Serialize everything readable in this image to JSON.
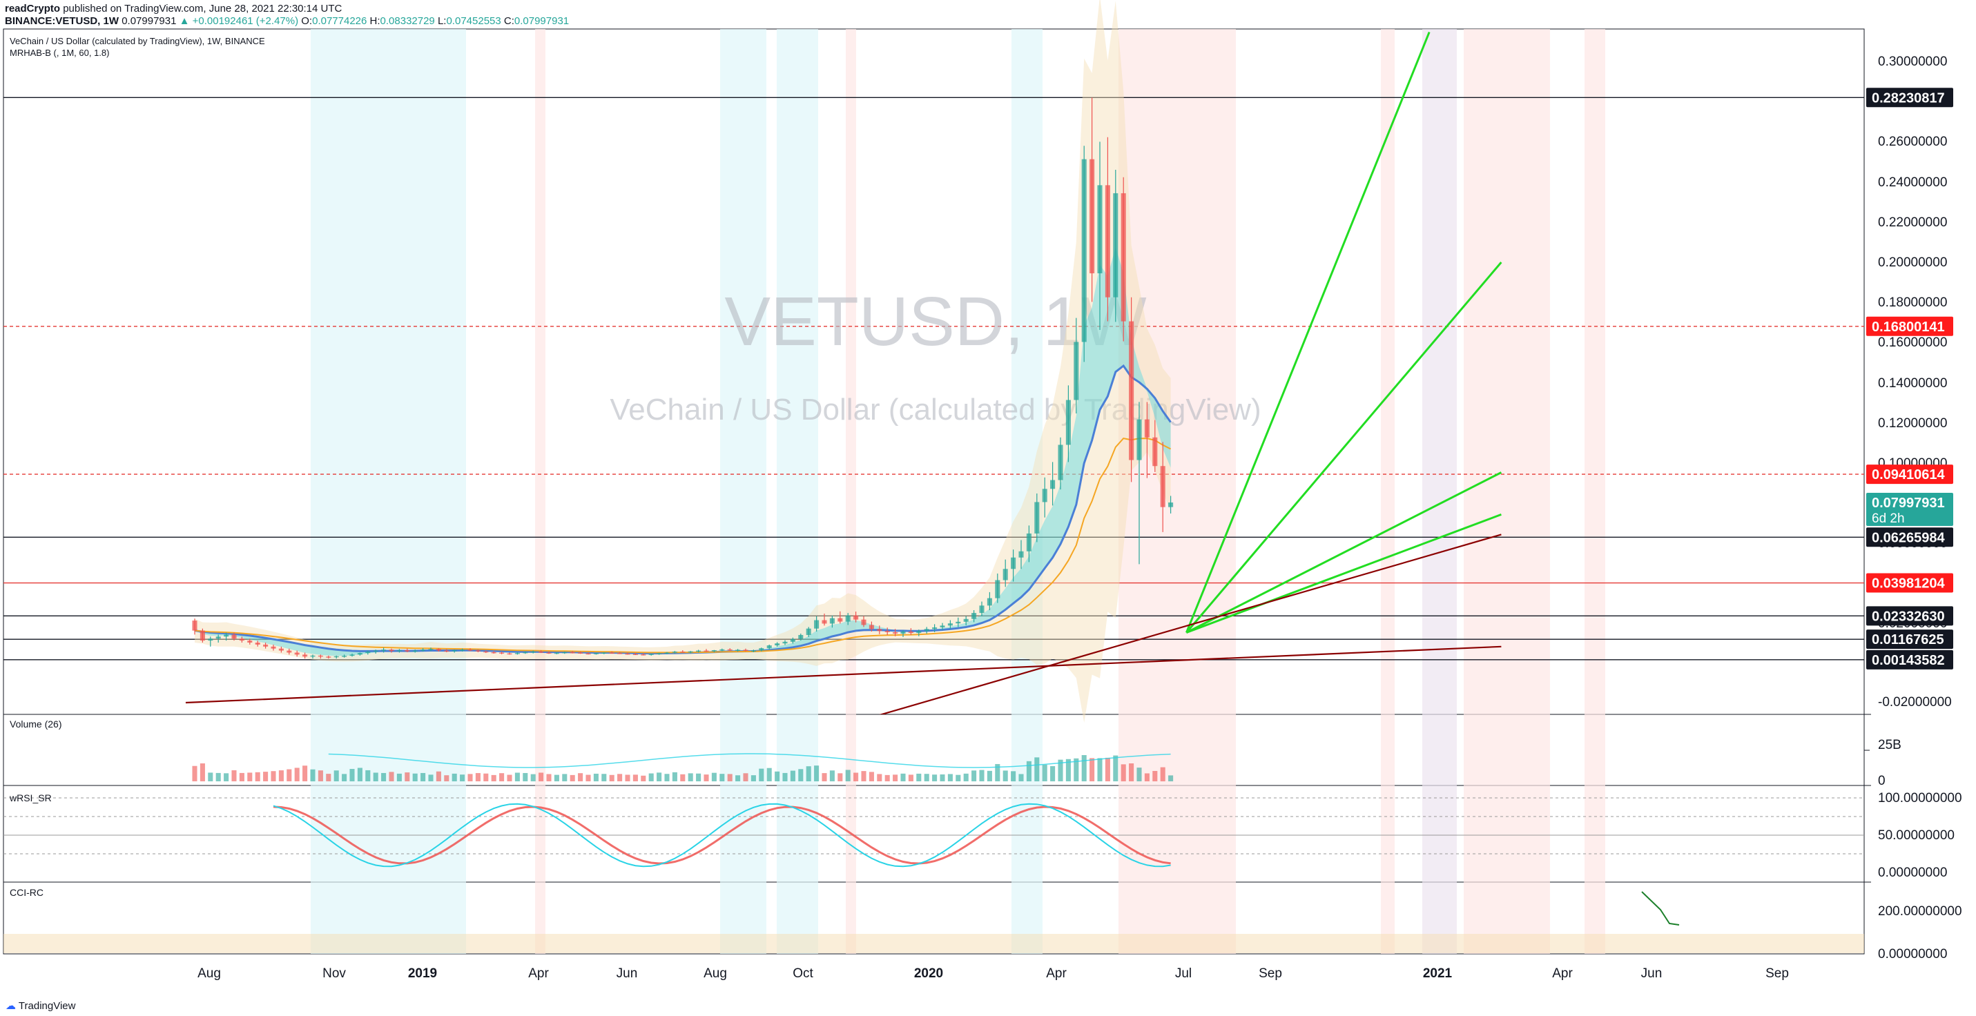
{
  "header": {
    "author": "readCrypto",
    "published": "published on TradingView.com, June 28, 2021 22:30:14 UTC",
    "symbol": "BINANCE:VETUSD, 1W",
    "last": "0.07997931",
    "change": "▲ +0.00192461 (+2.47%)",
    "o_label": "O:",
    "o": "0.07774226",
    "h_label": "H:",
    "h": "0.08332729",
    "l_label": "L:",
    "l": "0.07452553",
    "c_label": "C:",
    "c": "0.07997931"
  },
  "legend": {
    "line1": "VeChain / US Dollar (calculated by TradingView), 1W, BINANCE",
    "line2": "MRHAB-B (, 1M, 60, 1.8)"
  },
  "watermark": {
    "big": "VETUSD, 1W",
    "sub": "VeChain / US Dollar (calculated by TradingView)"
  },
  "footer": {
    "brand": "TradingView"
  },
  "colors": {
    "up": "#26a69a",
    "down": "#ef5350",
    "green_line": "#22dd22",
    "dark_red": "#8b0000",
    "blue": "#4a7fd6",
    "orange": "#f5a623",
    "cyan": "#29d3e6"
  },
  "chart_data": [
    {
      "type": "candlestick",
      "title": "VETUSD, 1W",
      "x_ticks": [
        "Aug",
        "Nov",
        "2019",
        "Apr",
        "Jun",
        "Aug",
        "Oct",
        "2020",
        "Apr",
        "Jul",
        "Sep",
        "2021",
        "Apr",
        "Jun",
        "Sep"
      ],
      "y_ticks": [
        "0.30000000",
        "0.28000000",
        "0.26000000",
        "0.24000000",
        "0.22000000",
        "0.20000000",
        "0.18000000",
        "0.16000000",
        "0.14000000",
        "0.12000000",
        "0.10000000",
        "0.08000000",
        "0.06000000",
        "0.04000000",
        "0.02000000",
        "0.00000000",
        "-0.02000000"
      ],
      "ylim": [
        -0.03,
        0.315
      ],
      "price_labels": [
        {
          "value": "0.28230817",
          "style": "black"
        },
        {
          "value": "0.16800141",
          "style": "red"
        },
        {
          "value": "0.09410614",
          "style": "red"
        },
        {
          "value": "0.07997931",
          "style": "teal",
          "sub": "6d 2h"
        },
        {
          "value": "0.06265984",
          "style": "black"
        },
        {
          "value": "0.03981204",
          "style": "red"
        },
        {
          "value": "0.02332630",
          "style": "black"
        },
        {
          "value": "0.01167625",
          "style": "black"
        },
        {
          "value": "0.00143582",
          "style": "black"
        }
      ],
      "series": [
        {
          "name": "VETUSD",
          "ohlc": [
            [
              0.021,
              0.022,
              0.014,
              0.016
            ],
            [
              0.016,
              0.017,
              0.01,
              0.011
            ],
            [
              0.011,
              0.013,
              0.008,
              0.012
            ],
            [
              0.012,
              0.014,
              0.01,
              0.013
            ],
            [
              0.013,
              0.015,
              0.011,
              0.014
            ],
            [
              0.014,
              0.015,
              0.011,
              0.012
            ],
            [
              0.012,
              0.013,
              0.01,
              0.011
            ],
            [
              0.011,
              0.012,
              0.009,
              0.01
            ],
            [
              0.01,
              0.011,
              0.008,
              0.009
            ],
            [
              0.009,
              0.01,
              0.007,
              0.008
            ],
            [
              0.008,
              0.009,
              0.006,
              0.007
            ],
            [
              0.007,
              0.008,
              0.005,
              0.006
            ],
            [
              0.006,
              0.007,
              0.004,
              0.005
            ],
            [
              0.005,
              0.006,
              0.003,
              0.004
            ],
            [
              0.004,
              0.005,
              0.002,
              0.003
            ],
            [
              0.003,
              0.004,
              0.002,
              0.0035
            ],
            [
              0.0035,
              0.004,
              0.002,
              0.003
            ],
            [
              0.003,
              0.0035,
              0.002,
              0.0028
            ],
            [
              0.0028,
              0.0035,
              0.002,
              0.0032
            ],
            [
              0.0032,
              0.004,
              0.0025,
              0.0034
            ],
            [
              0.0034,
              0.0045,
              0.003,
              0.004
            ],
            [
              0.004,
              0.005,
              0.0035,
              0.0048
            ],
            [
              0.0048,
              0.006,
              0.004,
              0.0055
            ],
            [
              0.0055,
              0.0065,
              0.0045,
              0.006
            ],
            [
              0.006,
              0.0075,
              0.005,
              0.0065
            ],
            [
              0.0065,
              0.007,
              0.005,
              0.0058
            ],
            [
              0.0058,
              0.0068,
              0.005,
              0.0062
            ],
            [
              0.0062,
              0.007,
              0.0052,
              0.0056
            ],
            [
              0.0056,
              0.0066,
              0.005,
              0.006
            ],
            [
              0.006,
              0.0072,
              0.0055,
              0.0065
            ],
            [
              0.0065,
              0.0075,
              0.0058,
              0.0068
            ],
            [
              0.0068,
              0.0072,
              0.0055,
              0.006
            ],
            [
              0.006,
              0.0068,
              0.0052,
              0.0058
            ],
            [
              0.0058,
              0.0066,
              0.005,
              0.0062
            ],
            [
              0.0062,
              0.007,
              0.0055,
              0.0065
            ],
            [
              0.0065,
              0.0072,
              0.0058,
              0.0061
            ],
            [
              0.0061,
              0.0066,
              0.0052,
              0.0056
            ],
            [
              0.0056,
              0.006,
              0.0048,
              0.0052
            ],
            [
              0.0052,
              0.0058,
              0.0045,
              0.005
            ],
            [
              0.005,
              0.0055,
              0.0042,
              0.0046
            ],
            [
              0.0046,
              0.005,
              0.004,
              0.0044
            ],
            [
              0.0044,
              0.0052,
              0.004,
              0.0048
            ],
            [
              0.0048,
              0.0056,
              0.0044,
              0.0052
            ],
            [
              0.0052,
              0.006,
              0.0046,
              0.0055
            ],
            [
              0.0055,
              0.0062,
              0.0048,
              0.005
            ],
            [
              0.005,
              0.0056,
              0.0044,
              0.0047
            ],
            [
              0.0047,
              0.0052,
              0.0042,
              0.0049
            ],
            [
              0.0049,
              0.0055,
              0.0044,
              0.0052
            ],
            [
              0.0052,
              0.0058,
              0.0046,
              0.005
            ],
            [
              0.005,
              0.0055,
              0.0044,
              0.0046
            ],
            [
              0.0046,
              0.005,
              0.0041,
              0.0044
            ],
            [
              0.0044,
              0.0049,
              0.004,
              0.0047
            ],
            [
              0.0047,
              0.0052,
              0.0042,
              0.005
            ],
            [
              0.005,
              0.0056,
              0.0045,
              0.0048
            ],
            [
              0.0048,
              0.0053,
              0.0043,
              0.0045
            ],
            [
              0.0045,
              0.005,
              0.004,
              0.0043
            ],
            [
              0.0043,
              0.0048,
              0.0038,
              0.0041
            ],
            [
              0.0041,
              0.0046,
              0.0036,
              0.004
            ],
            [
              0.004,
              0.0045,
              0.0035,
              0.0043
            ],
            [
              0.0043,
              0.0049,
              0.0039,
              0.0047
            ],
            [
              0.0047,
              0.0053,
              0.0042,
              0.005
            ],
            [
              0.005,
              0.0058,
              0.0046,
              0.0055
            ],
            [
              0.0055,
              0.0062,
              0.005,
              0.0052
            ],
            [
              0.0052,
              0.0058,
              0.0047,
              0.0056
            ],
            [
              0.0056,
              0.0064,
              0.0051,
              0.006
            ],
            [
              0.006,
              0.0068,
              0.0054,
              0.0057
            ],
            [
              0.0057,
              0.0063,
              0.0052,
              0.0062
            ],
            [
              0.0062,
              0.007,
              0.0056,
              0.0066
            ],
            [
              0.0066,
              0.0072,
              0.0058,
              0.0062
            ],
            [
              0.0062,
              0.0068,
              0.0055,
              0.0064
            ],
            [
              0.0064,
              0.007,
              0.0056,
              0.0059
            ],
            [
              0.0059,
              0.0065,
              0.0052,
              0.0061
            ],
            [
              0.0061,
              0.0075,
              0.0056,
              0.0072
            ],
            [
              0.0072,
              0.009,
              0.0066,
              0.0086
            ],
            [
              0.0086,
              0.0102,
              0.008,
              0.0096
            ],
            [
              0.0096,
              0.0112,
              0.0088,
              0.0104
            ],
            [
              0.0104,
              0.0125,
              0.0095,
              0.0118
            ],
            [
              0.0118,
              0.0145,
              0.011,
              0.0138
            ],
            [
              0.0138,
              0.0178,
              0.0128,
              0.017
            ],
            [
              0.017,
              0.0232,
              0.0155,
              0.0212
            ],
            [
              0.0212,
              0.0245,
              0.0185,
              0.0195
            ],
            [
              0.0195,
              0.0235,
              0.0175,
              0.0222
            ],
            [
              0.0222,
              0.0256,
              0.0195,
              0.0205
            ],
            [
              0.0205,
              0.0248,
              0.0188,
              0.0236
            ],
            [
              0.0236,
              0.0255,
              0.0201,
              0.0215
            ],
            [
              0.0215,
              0.0232,
              0.0178,
              0.0188
            ],
            [
              0.0188,
              0.0205,
              0.0155,
              0.0168
            ],
            [
              0.0168,
              0.0185,
              0.0142,
              0.0158
            ],
            [
              0.0158,
              0.0175,
              0.0138,
              0.0152
            ],
            [
              0.0152,
              0.0168,
              0.0132,
              0.0145
            ],
            [
              0.0145,
              0.0162,
              0.0128,
              0.0155
            ],
            [
              0.0155,
              0.0172,
              0.0138,
              0.0148
            ],
            [
              0.0148,
              0.0165,
              0.0132,
              0.0158
            ],
            [
              0.0158,
              0.0178,
              0.0145,
              0.0168
            ],
            [
              0.0168,
              0.0192,
              0.0152,
              0.0176
            ],
            [
              0.0176,
              0.0198,
              0.0162,
              0.0185
            ],
            [
              0.0185,
              0.0212,
              0.0168,
              0.0196
            ],
            [
              0.0196,
              0.0225,
              0.0178,
              0.0204
            ],
            [
              0.0204,
              0.0232,
              0.0186,
              0.0218
            ],
            [
              0.0218,
              0.0262,
              0.0202,
              0.0248
            ],
            [
              0.0248,
              0.0305,
              0.0232,
              0.0285
            ],
            [
              0.0285,
              0.0352,
              0.0262,
              0.0322
            ],
            [
              0.0322,
              0.0445,
              0.0298,
              0.0412
            ],
            [
              0.0412,
              0.0515,
              0.0378,
              0.0468
            ],
            [
              0.0468,
              0.0565,
              0.0405,
              0.0525
            ],
            [
              0.0525,
              0.0612,
              0.0468,
              0.0556
            ],
            [
              0.0556,
              0.0685,
              0.0502,
              0.0645
            ],
            [
              0.0645,
              0.0845,
              0.0602,
              0.0802
            ],
            [
              0.0802,
              0.0925,
              0.0725,
              0.0868
            ],
            [
              0.0868,
              0.1002,
              0.0785,
              0.0912
            ],
            [
              0.0912,
              0.1125,
              0.0865,
              0.1088
            ],
            [
              0.1088,
              0.1385,
              0.1002,
              0.1312
            ],
            [
              0.1312,
              0.1722,
              0.1245,
              0.1602
            ],
            [
              0.1602,
              0.2582,
              0.1502,
              0.2515
            ],
            [
              0.2515,
              0.2823,
              0.1802,
              0.1945
            ],
            [
              0.1945,
              0.2602,
              0.1662,
              0.2385
            ],
            [
              0.2385,
              0.2625,
              0.1705,
              0.1825
            ],
            [
              0.1825,
              0.2462,
              0.1702,
              0.2345
            ],
            [
              0.2345,
              0.2425,
              0.1605,
              0.1705
            ],
            [
              0.1705,
              0.1825,
              0.0902,
              0.1012
            ],
            [
              0.1012,
              0.1302,
              0.0492,
              0.1215
            ],
            [
              0.1215,
              0.1302,
              0.0922,
              0.1125
            ],
            [
              0.1125,
              0.1212,
              0.0952,
              0.0982
            ],
            [
              0.0982,
              0.1102,
              0.0652,
              0.0777
            ],
            [
              0.0777,
              0.0833,
              0.0745,
              0.08
            ]
          ]
        }
      ],
      "trend_lines": [
        {
          "name": "green-trend-1",
          "color": "#22dd22",
          "points": [
            [
              "2020-12-21",
              0.015
            ],
            [
              "2021-07-25",
              0.315
            ]
          ]
        },
        {
          "name": "green-trend-2",
          "color": "#22dd22",
          "points": [
            [
              "2020-12-21",
              0.015
            ],
            [
              "2021-09-27",
              0.2
            ]
          ]
        },
        {
          "name": "green-trend-3",
          "color": "#22dd22",
          "points": [
            [
              "2020-12-21",
              0.015
            ],
            [
              "2021-09-27",
              0.095
            ]
          ]
        },
        {
          "name": "green-trend-4",
          "color": "#22dd22",
          "points": [
            [
              "2020-12-21",
              0.015
            ],
            [
              "2021-09-27",
              0.074
            ]
          ]
        },
        {
          "name": "red-trend-1",
          "color": "#8b0000",
          "points": [
            [
              "2018-07-15",
              -0.02
            ],
            [
              "2021-09-27",
              0.008
            ]
          ]
        },
        {
          "name": "red-trend-2",
          "color": "#8b0000",
          "points": [
            [
              "2020-03-15",
              -0.0275
            ],
            [
              "2021-09-27",
              0.064
            ]
          ]
        }
      ]
    },
    {
      "type": "bar",
      "title": "Volume (26)",
      "y_ticks": [
        "25B",
        "0"
      ]
    },
    {
      "type": "line",
      "title": "wRSI_SR",
      "y_ticks": [
        "100.00000000",
        "50.00000000",
        "0.00000000"
      ]
    },
    {
      "type": "line",
      "title": "CCI-RC",
      "y_ticks": [
        "200.00000000",
        "0.00000000"
      ]
    }
  ]
}
